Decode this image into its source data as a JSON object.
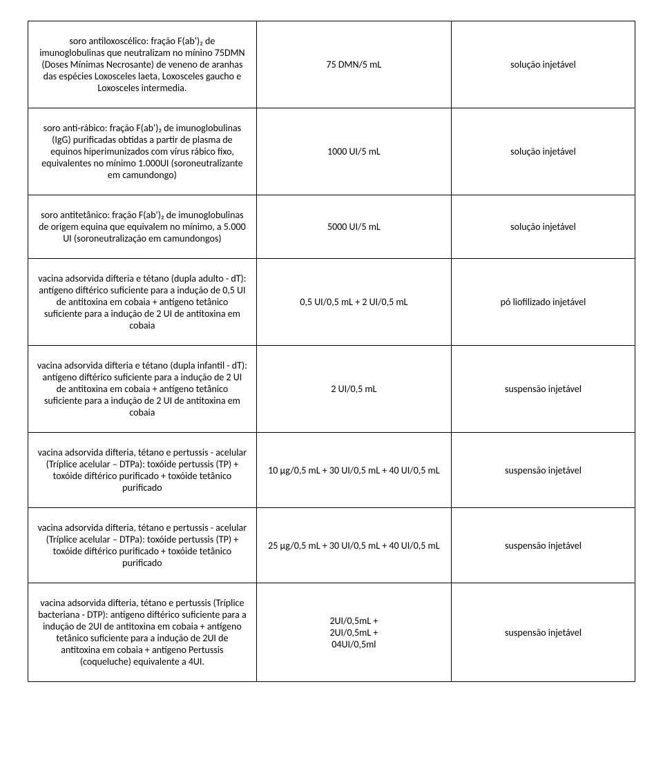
{
  "table": {
    "columns": [
      {
        "key": "desc",
        "width": "38%"
      },
      {
        "key": "dose",
        "width": "32%"
      },
      {
        "key": "form",
        "width": "30%"
      }
    ],
    "rows": [
      {
        "desc": "soro antiloxoscélico: fração F(ab')₂ de imunoglobulinas que neutralizam no mínino 75DMN (Doses  Mínimas Necrosante) de veneno de aranhas das espécies Loxosceles laeta, Loxosceles gaucho e Loxosceles  intermedia.",
        "dose": "75 DMN/5 mL",
        "form": "solução injetável"
      },
      {
        "desc": "soro anti-rábico: fração F(ab')₂ de imunoglobulinas (IgG) purificadas obtidas a partir de plasma de equinos hiperimunizados com vírus rábico fixo, equivalentes no mínimo 1.000UI (soroneutralizante em camundongo)",
        "dose": "1000 UI/5 mL",
        "form": "solução injetável"
      },
      {
        "desc": "soro antitetânico: fração F(ab')₂ de imunoglobulinas de origem equina que equivalem no mínimo, a 5.000 UI (soroneutralização em camundongos)",
        "dose": "5000 UI/5 mL",
        "form": "solução injetável"
      },
      {
        "desc": "vacina adsorvida difteria e tétano (dupla adulto - dT): antígeno diftérico  suficiente para a indução de 0,5 UI de antitoxina em cobaia + antígeno tetânico  suficiente para a indução de 2 UI de antitoxina em cobaia",
        "dose": "0,5 UI/0,5 mL + 2 UI/0,5 mL",
        "form": "pó liofilizado injetável"
      },
      {
        "desc": "vacina adsorvida difteria e tétano (dupla infantil - dT): antígeno diftérico  suficiente para a indução de 2 UI de antitoxina em cobaia + antígeno tetânico  suficiente para a indução de 2 UI de antitoxina em cobaia",
        "dose": "2 UI/0,5 mL",
        "form": "suspensão injetável"
      },
      {
        "desc": "vacina adsorvida difteria, tétano e pertussis - acelular (Tríplice acelular – DTPa): toxóide pertussis (TP) + toxóide diftérico purificado + toxóide tetânico purificado",
        "dose": "10 μg/0,5 mL + 30 UI/0,5 mL +  40 UI/0,5 mL",
        "form": "suspensão injetável"
      },
      {
        "desc": "vacina adsorvida difteria, tétano e pertussis - acelular (Tríplice acelular – DTPa): toxóide pertussis (TP) + toxóide diftérico purificado + toxóide tetânico purificado",
        "dose": "25 μg/0,5 mL + 30 UI/0,5 mL +  40 UI/0,5 mL",
        "form": "suspensão injetável"
      },
      {
        "desc": "vacina adsorvida difteria, tétano e pertussis (Tríplice bacteriana - DTP): antígeno diftérico suficiente para a indução de 2UI de antitoxina em cobaia + antígeno tetânico suficiente para a indução de 2UI de antitoxina em cobaia + antígeno Pertussis (coqueluche) equivalente a 4UI.",
        "dose": "2UI/0,5mL +\n2UI/0,5mL +\n04UI/0,5ml",
        "form": "suspensão injetável"
      }
    ]
  }
}
